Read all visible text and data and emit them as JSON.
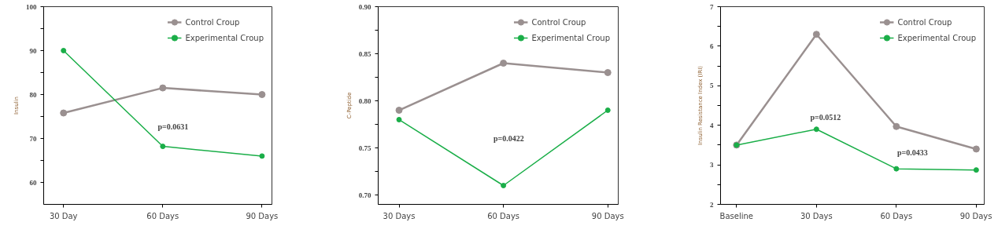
{
  "chart_data": [
    {
      "type": "line",
      "ylabel": "Insulin",
      "categories": [
        "30 Day",
        "60 Days",
        "90 Days"
      ],
      "series": [
        {
          "name": "Control Croup",
          "color": "#9a9090",
          "values": [
            75.8,
            81.5,
            80
          ]
        },
        {
          "name": "Experimental Croup",
          "color": "#1aae48",
          "values": [
            90,
            68.2,
            66
          ]
        }
      ],
      "ylim": [
        55,
        100
      ],
      "yticks": [
        60,
        {
          "value": 65,
          "label": null
        },
        70,
        {
          "value": 75,
          "label": null
        },
        80,
        {
          "value": 85,
          "label": null
        },
        90,
        {
          "value": 95,
          "label": null
        },
        100
      ],
      "annotations": [
        "p=0.0631"
      ],
      "legend": "top right",
      "marker": "circle",
      "grid": false
    },
    {
      "type": "line",
      "ylabel": "C-Peptide",
      "categories": [
        "30 Days",
        "60 Days",
        "90 Days"
      ],
      "series": [
        {
          "name": "Control Croup",
          "color": "#9a9090",
          "values": [
            0.79,
            0.84,
            0.83
          ]
        },
        {
          "name": "Experimental Croup",
          "color": "#1aae48",
          "values": [
            0.78,
            0.71,
            0.79
          ]
        }
      ],
      "ylim": [
        0.69,
        0.9
      ],
      "yticks": [
        {
          "value": 0.7,
          "label": "0.70"
        },
        {
          "value": 0.725,
          "label": null
        },
        0.75,
        {
          "value": 0.775,
          "label": null
        },
        {
          "value": 0.8,
          "label": "0.80"
        },
        {
          "value": 0.825,
          "label": null
        },
        0.85,
        {
          "value": 0.875,
          "label": null
        },
        {
          "value": 0.9,
          "label": "0.90"
        }
      ],
      "annotations": [
        "p=0.0422"
      ],
      "legend": "top right",
      "marker": "circle",
      "grid": false
    },
    {
      "type": "line",
      "ylabel": "Insulin Resistance Index (IRI)",
      "categories": [
        "Baseline",
        "30 Days",
        "60 Days",
        "90 Days"
      ],
      "series": [
        {
          "name": "Control Croup",
          "color": "#9a9090",
          "values": [
            3.5,
            6.3,
            3.97,
            3.4
          ]
        },
        {
          "name": "Experimental Croup",
          "color": "#1aae48",
          "values": [
            3.5,
            3.9,
            2.9,
            2.87
          ]
        }
      ],
      "ylim": [
        2,
        7
      ],
      "yticks": [
        2,
        {
          "value": 2.5,
          "label": null
        },
        3,
        {
          "value": 3.5,
          "label": null
        },
        4,
        {
          "value": 4.5,
          "label": null
        },
        5,
        {
          "value": 5.5,
          "label": null
        },
        6,
        {
          "value": 6.5,
          "label": null
        },
        7
      ],
      "annotations": [
        "p=0.0512",
        "p=0.0433"
      ],
      "legend": "top right",
      "marker": "circle",
      "grid": false
    }
  ]
}
